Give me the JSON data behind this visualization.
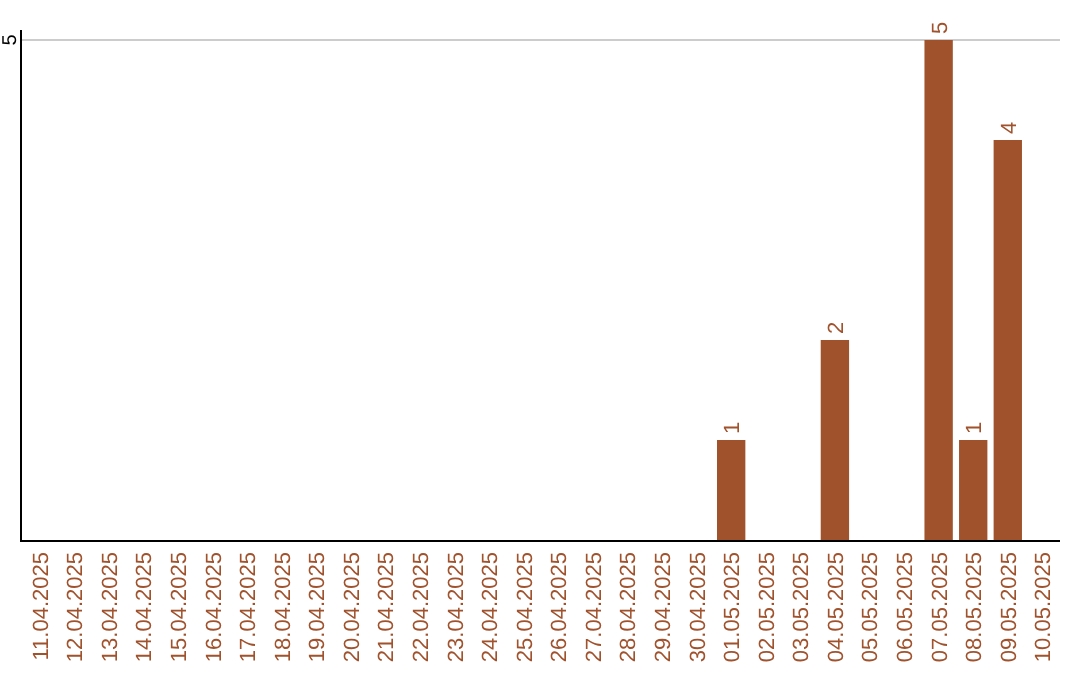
{
  "chart_data": {
    "type": "bar",
    "categories": [
      "11.04.2025",
      "12.04.2025",
      "13.04.2025",
      "14.04.2025",
      "15.04.2025",
      "16.04.2025",
      "17.04.2025",
      "18.04.2025",
      "19.04.2025",
      "20.04.2025",
      "21.04.2025",
      "22.04.2025",
      "23.04.2025",
      "24.04.2025",
      "25.04.2025",
      "26.04.2025",
      "27.04.2025",
      "28.04.2025",
      "29.04.2025",
      "30.04.2025",
      "01.05.2025",
      "02.05.2025",
      "03.05.2025",
      "04.05.2025",
      "05.05.2025",
      "06.05.2025",
      "07.05.2025",
      "08.05.2025",
      "09.05.2025",
      "10.05.2025"
    ],
    "values": [
      null,
      null,
      null,
      null,
      null,
      null,
      null,
      null,
      null,
      null,
      null,
      null,
      null,
      null,
      null,
      null,
      null,
      null,
      null,
      null,
      1,
      null,
      null,
      2,
      null,
      null,
      5,
      1,
      4,
      null
    ],
    "data_labels": true,
    "color": "#a0522d",
    "ylim": [
      0,
      5
    ],
    "ref_lines": [
      {
        "axis": "y",
        "value": 5,
        "label": "5",
        "color": "#cccccc"
      }
    ]
  }
}
